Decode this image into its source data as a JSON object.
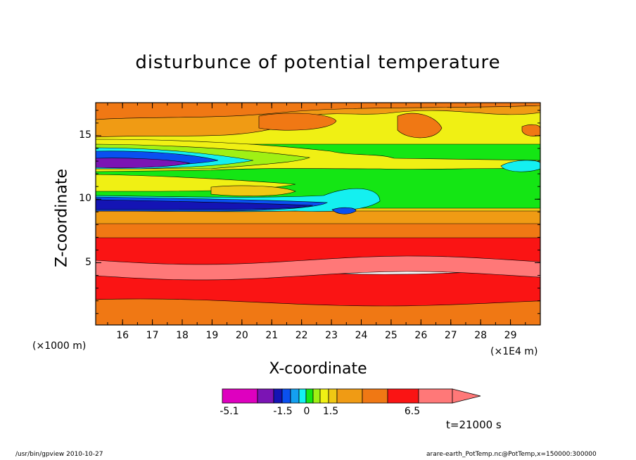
{
  "chart_data": {
    "type": "heatmap",
    "title": "disturbunce of potential temperature",
    "xlabel": "X-coordinate",
    "ylabel": "Z-coordinate",
    "x_unit_label": "(×1000 m)",
    "x_scale_label": "(×1E4 m)",
    "x_ticks": [
      "16",
      "17",
      "18",
      "19",
      "20",
      "21",
      "22",
      "23",
      "24",
      "25",
      "26",
      "27",
      "28",
      "29"
    ],
    "y_ticks": [
      "5",
      "10",
      "15"
    ],
    "xlim": [
      15.1,
      30.0
    ],
    "ylim": [
      0.1,
      17.6
    ],
    "colorbar": {
      "tick_labels": [
        "-5.1",
        "-1.5",
        "0",
        "1.5",
        "6.5"
      ],
      "colors": [
        "#de00bf",
        "#7b14b4",
        "#1414b4",
        "#0a50f0",
        "#14a0f0",
        "#14f0f0",
        "#14e614",
        "#a0f014",
        "#f0f014",
        "#f0c814",
        "#f09b14",
        "#f07814",
        "#fa1414",
        "#ff7878"
      ]
    },
    "time_label": "t=21000 s"
  },
  "footer": {
    "left": "/usr/bin/gpview   2010-10-27",
    "right": "arare-earth_PotTemp.nc@PotTemp,x=150000:300000"
  }
}
